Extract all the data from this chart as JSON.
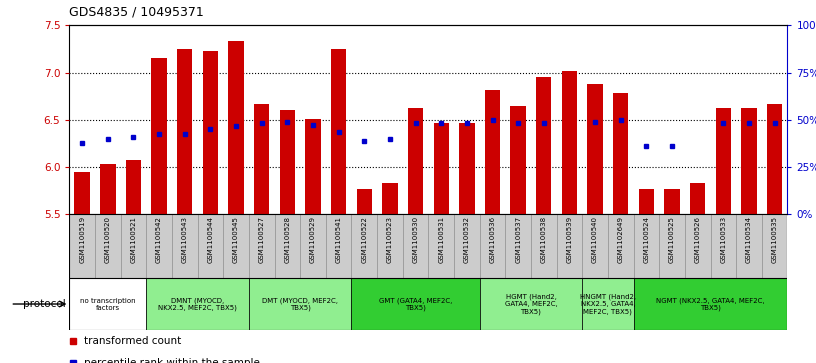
{
  "title": "GDS4835 / 10495371",
  "samples": [
    "GSM1100519",
    "GSM1100520",
    "GSM1100521",
    "GSM1100542",
    "GSM1100543",
    "GSM1100544",
    "GSM1100545",
    "GSM1100527",
    "GSM1100528",
    "GSM1100529",
    "GSM1100541",
    "GSM1100522",
    "GSM1100523",
    "GSM1100530",
    "GSM1100531",
    "GSM1100532",
    "GSM1100536",
    "GSM1100537",
    "GSM1100538",
    "GSM1100539",
    "GSM1100540",
    "GSM1102649",
    "GSM1100524",
    "GSM1100525",
    "GSM1100526",
    "GSM1100533",
    "GSM1100534",
    "GSM1100535"
  ],
  "bar_values": [
    5.95,
    6.03,
    6.07,
    7.15,
    7.25,
    7.23,
    7.33,
    6.67,
    6.6,
    6.51,
    7.25,
    5.77,
    5.83,
    6.63,
    6.47,
    6.47,
    6.82,
    6.65,
    6.95,
    7.02,
    6.88,
    6.78,
    5.77,
    5.77,
    5.83,
    6.63,
    6.63,
    6.67
  ],
  "percentile_values": [
    6.25,
    6.3,
    6.32,
    6.35,
    6.35,
    6.4,
    6.43,
    6.47,
    6.48,
    6.44,
    6.37,
    6.27,
    6.3,
    6.47,
    6.47,
    6.47,
    6.5,
    6.47,
    6.47,
    null,
    6.48,
    6.5,
    6.22,
    6.22,
    null,
    6.47,
    6.47,
    6.47
  ],
  "ylim": [
    5.5,
    7.5
  ],
  "yticks": [
    5.5,
    6.0,
    6.5,
    7.0,
    7.5
  ],
  "right_yticks": [
    0,
    25,
    50,
    75,
    100
  ],
  "right_ytick_labels": [
    "0%",
    "25%",
    "50%",
    "75%",
    "100%"
  ],
  "protocols": [
    {
      "label": "no transcription\nfactors",
      "color": "#ffffff",
      "span": [
        0,
        3
      ]
    },
    {
      "label": "DMNT (MYOCD,\nNKX2.5, MEF2C, TBX5)",
      "color": "#90ee90",
      "span": [
        3,
        7
      ]
    },
    {
      "label": "DMT (MYOCD, MEF2C,\nTBX5)",
      "color": "#90ee90",
      "span": [
        7,
        11
      ]
    },
    {
      "label": "GMT (GATA4, MEF2C,\nTBX5)",
      "color": "#32cd32",
      "span": [
        11,
        16
      ]
    },
    {
      "label": "HGMT (Hand2,\nGATA4, MEF2C,\nTBX5)",
      "color": "#90ee90",
      "span": [
        16,
        20
      ]
    },
    {
      "label": "HNGMT (Hand2,\nNKX2.5, GATA4,\nMEF2C, TBX5)",
      "color": "#90ee90",
      "span": [
        20,
        22
      ]
    },
    {
      "label": "NGMT (NKX2.5, GATA4, MEF2C,\nTBX5)",
      "color": "#32cd32",
      "span": [
        22,
        28
      ]
    }
  ],
  "bar_color": "#cc0000",
  "percentile_color": "#0000cc",
  "grid_color": "#000000",
  "bg_color": "#ffffff",
  "bar_width": 0.6,
  "base_value": 5.5,
  "xticklabel_bg": "#cccccc"
}
